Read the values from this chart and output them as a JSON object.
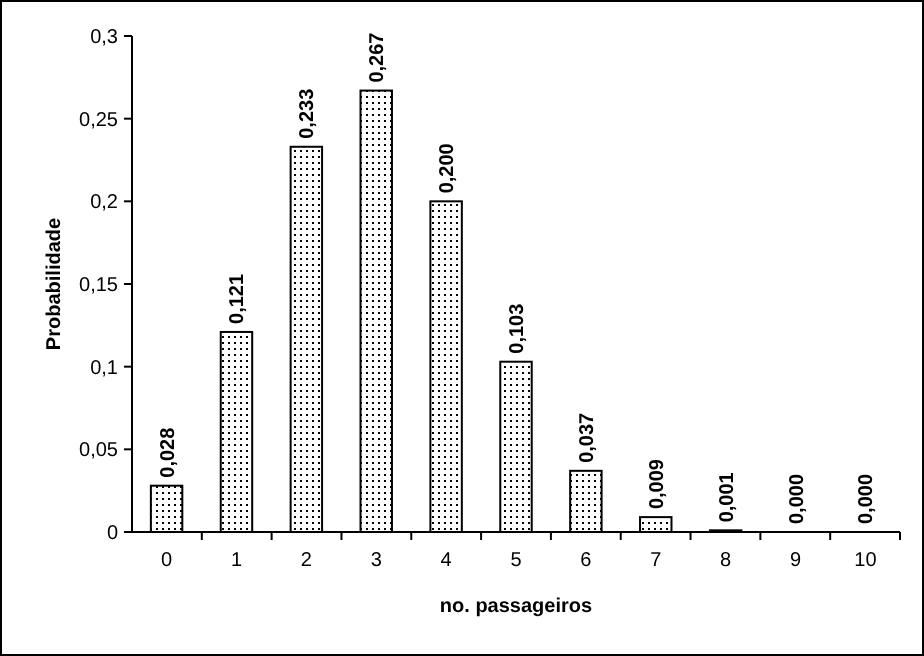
{
  "chart_data": {
    "type": "bar",
    "xlabel": "no. passageiros",
    "ylabel": "Probabilidade",
    "categories": [
      "0",
      "1",
      "2",
      "3",
      "4",
      "5",
      "6",
      "7",
      "8",
      "9",
      "10"
    ],
    "values": [
      0.028,
      0.121,
      0.233,
      0.267,
      0.2,
      0.103,
      0.037,
      0.009,
      0.001,
      0,
      0
    ],
    "value_labels": [
      "0,028",
      "0,121",
      "0,233",
      "0,267",
      "0,200",
      "0,103",
      "0,037",
      "0,009",
      "0,001",
      "0,000",
      "0,000"
    ],
    "color": "#000000",
    "ylim": [
      0,
      0.3
    ],
    "yticks": [
      {
        "value": 0,
        "label": "0"
      },
      {
        "value": 0.05,
        "label": "0,05"
      },
      {
        "value": 0.1,
        "label": "0,1"
      },
      {
        "value": 0.15,
        "label": "0,15"
      },
      {
        "value": 0.2,
        "label": "0,2"
      },
      {
        "value": 0.25,
        "label": "0,25"
      },
      {
        "value": 0.3,
        "label": "0,3"
      }
    ],
    "grid": false
  }
}
